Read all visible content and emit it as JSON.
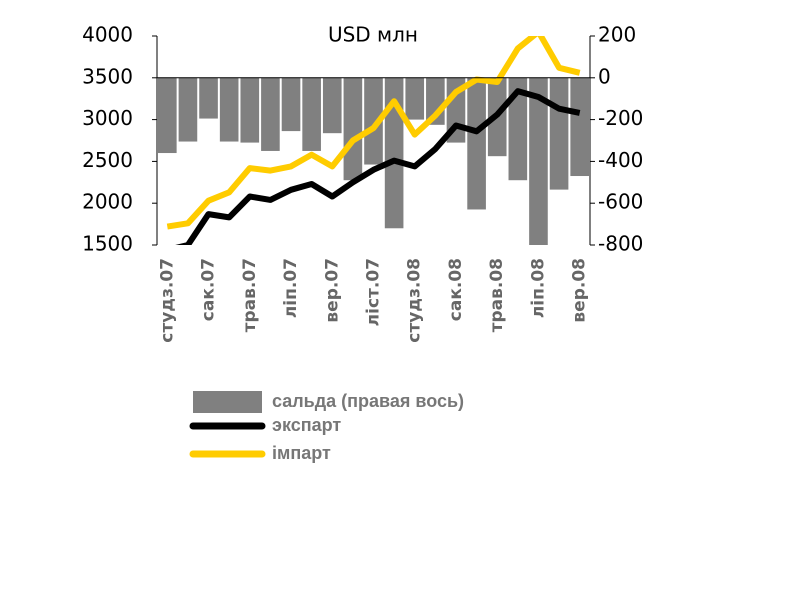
{
  "chart_data": {
    "type": "bar_line",
    "title": "USD млн",
    "categories": [
      "студз.07",
      null,
      "сак.07",
      null,
      "трав.07",
      null,
      "ліп.07",
      null,
      "вер.07",
      null,
      "ліст.07",
      null,
      "студз.08",
      null,
      "сак.08",
      null,
      "трав.08",
      null,
      "ліп.08",
      null,
      "вер.08"
    ],
    "series": [
      {
        "name": "сальда (правая вось)",
        "color": "#808080",
        "axis": "y2",
        "kind": "bar",
        "values": [
          -360,
          -305,
          -195,
          -305,
          -310,
          -350,
          -255,
          -350,
          -265,
          -490,
          -415,
          -720,
          -200,
          -225,
          -310,
          -630,
          -375,
          -490,
          -810,
          -535,
          -470
        ]
      },
      {
        "name": "экспарт",
        "color": "#000000",
        "kind": "line",
        "values": [
          1440,
          1500,
          1870,
          1830,
          2080,
          2040,
          2160,
          2230,
          2080,
          2250,
          2400,
          2510,
          2440,
          2650,
          2930,
          2860,
          3060,
          3340,
          3270,
          3130,
          3080
        ]
      },
      {
        "name": "імпарт",
        "color": "#ffcc00",
        "kind": "line",
        "values": [
          1720,
          1760,
          2030,
          2130,
          2420,
          2390,
          2440,
          2580,
          2440,
          2750,
          2900,
          3220,
          2820,
          3050,
          3330,
          3480,
          3450,
          3850,
          4050,
          3620,
          3560
        ]
      }
    ],
    "ylim": [
      1500,
      4000
    ],
    "yticks": [
      1500,
      2000,
      2500,
      3000,
      3500,
      4000
    ],
    "y2lim": [
      -800,
      200
    ],
    "y2ticks": [
      -800,
      -600,
      -400,
      -200,
      0,
      200
    ]
  }
}
